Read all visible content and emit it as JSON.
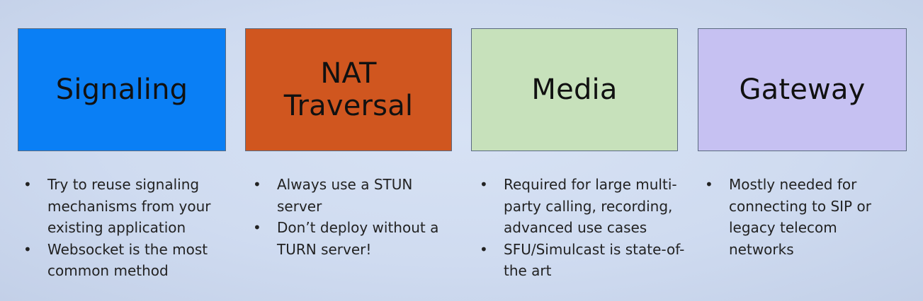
{
  "columns": [
    {
      "title": "Signaling",
      "color": "#0a7ff5",
      "bullets": [
        "Try to reuse signaling mechanisms from your existing application",
        "Websocket is the most common method"
      ]
    },
    {
      "title": "NAT\nTraversal",
      "color": "#d0561f",
      "bullets": [
        "Always use a STUN server",
        "Don’t deploy without a TURN server!"
      ]
    },
    {
      "title": "Media",
      "color": "#c7e1bb",
      "bullets": [
        "Required for large multi-party calling, recording, advanced use cases",
        "SFU/Simulcast is state-of-the art"
      ]
    },
    {
      "title": "Gateway",
      "color": "#c6c1f2",
      "bullets": [
        "Mostly needed for connecting to SIP or legacy telecom networks"
      ]
    }
  ]
}
